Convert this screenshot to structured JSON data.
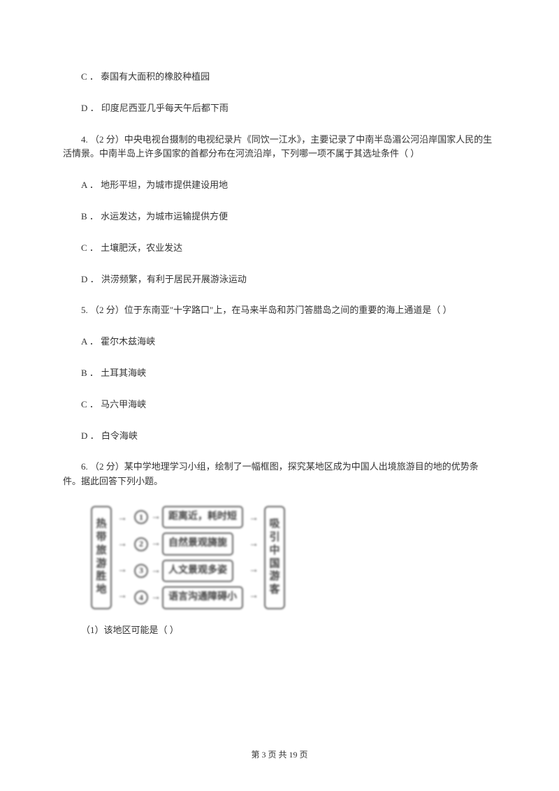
{
  "q3": {
    "C": "C ． 泰国有大面积的橡胶种植园",
    "D": "D ． 印度尼西亚几乎每天午后都下雨"
  },
  "q4": {
    "stem": "4.   （2 分）中央电视台摄制的电视纪录片《同饮一江水》，主要记录了中南半岛湄公河沿岸国家人民的生活情景。中南半岛上许多国家的首都分布在河流沿岸，下列哪一项不属于其选址条件（    ）",
    "A": "A ． 地形平坦，为城市提供建设用地",
    "B": "B ． 水运发达，为城市运输提供方便",
    "C": "C ． 土壤肥沃，农业发达",
    "D": "D ． 洪涝频繁，有利于居民开展游泳运动"
  },
  "q5": {
    "stem": "5.  （2 分）位于东南亚\"十字路口\"上，在马来半岛和苏门答腊岛之间的重要的海上通道是（     ）",
    "A": "A ． 霍尔木兹海峡",
    "B": "B ． 土耳其海峡",
    "C": "C ． 马六甲海峡",
    "D": "D ． 白令海峡"
  },
  "q6": {
    "stem": "6.   （2 分）某中学地理学习小组，绘制了一幅框图，探究某地区成为中国人出境旅游目的地的优势条件。据此回答下列小题。",
    "sub1": "（1）该地区可能是（     ）"
  },
  "diagram": {
    "left": "热带旅游胜地",
    "rows": [
      {
        "num": "1",
        "label": "距离近，耗时短"
      },
      {
        "num": "2",
        "label": "自然景观旖旎"
      },
      {
        "num": "3",
        "label": "人文景观多姿"
      },
      {
        "num": "4",
        "label": "语言沟通障碍小"
      }
    ],
    "right": "吸引中国游客"
  },
  "footer": "第 3 页 共 19 页"
}
